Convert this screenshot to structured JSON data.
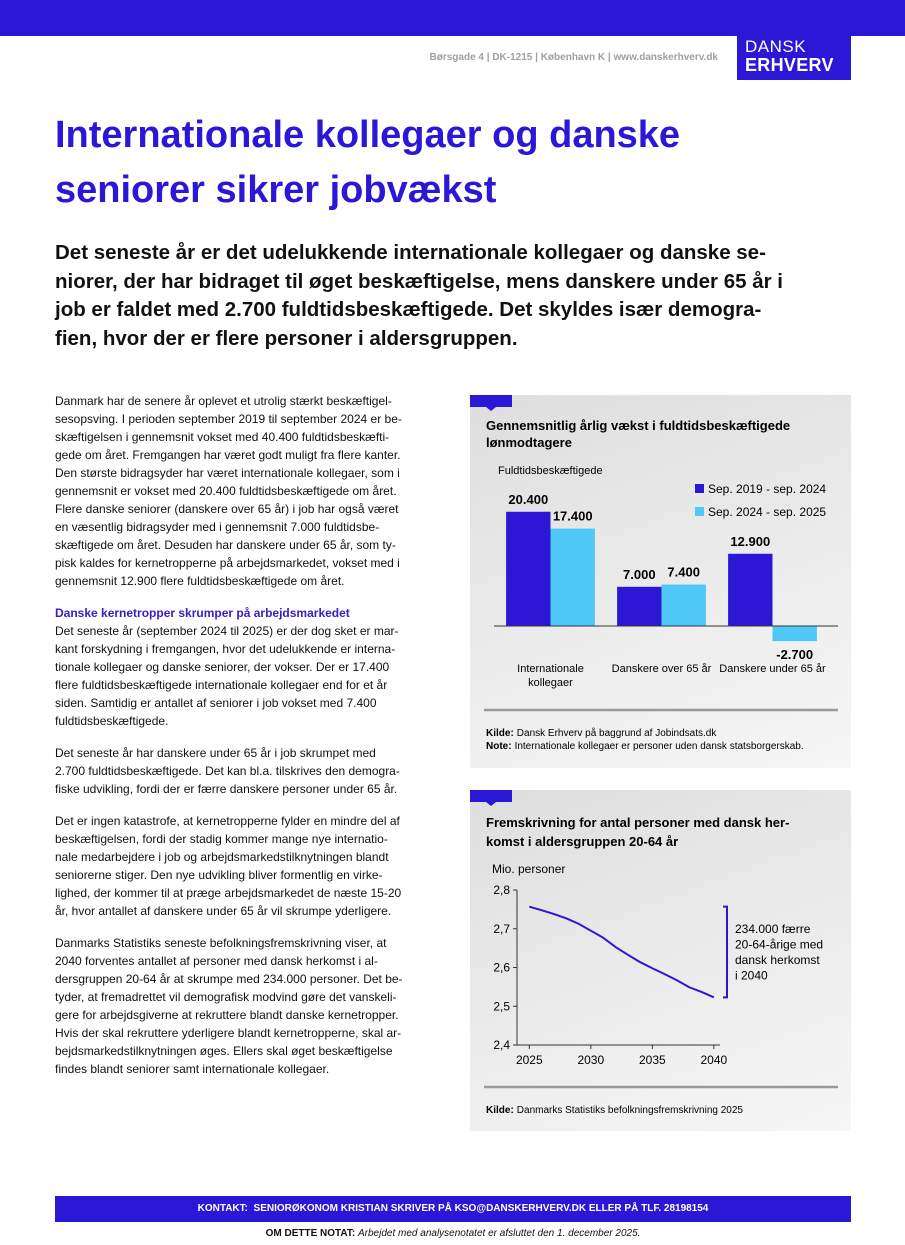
{
  "header": {
    "address": "Børsgade 4 | DK-1215 | København K | www.danskerhverv.dk",
    "logo": [
      "DANSK",
      "ERHVERV"
    ]
  },
  "title": [
    "Internationale kollegaer og danske",
    "seniorer sikrer jobvækst"
  ],
  "lead": [
    "Det seneste år er det udelukkende internationale kollegaer og danske se-",
    "niorer, der har bidraget til øget beskæftigelse, mens danskere under 65 år i",
    "job er faldet med 2.700 fuldtidsbeskæftigede. Det skyldes især demogra-",
    "fien, hvor der er flere personer i aldersgruppen."
  ],
  "body": [
    {
      "lines": [
        "Danmark har de senere år oplevet et utrolig stærkt beskæftigel-",
        "sesopsving. I perioden september 2019 til september 2024 er be-",
        "skæftigelsen i gennemsnit vokset med 40.400 fuldtidsbeskæfti-",
        "gede om året. Fremgangen har været godt muligt fra flere kanter.",
        "Den største bidragsyder har været internationale kollegaer, som i",
        "gennemsnit er vokset med 20.400 fuldtidsbeskæftigede om året.",
        "Flere danske seniorer (danskere over 65 år) i job har også været",
        "en væsentlig bidragsyder med i gennemsnit 7.000 fuldtidsbe-",
        "skæftigede om året. Desuden har danskere under 65 år, som ty-",
        "pisk kaldes for kernetropperne på arbejdsmarkedet, vokset med i",
        "gennemsnit 12.900 flere fuldtidsbeskæftigede om året."
      ]
    },
    {
      "heading": "Danske kernetropper skrumper på arbejdsmarkedet",
      "lines": [
        "Det seneste år (september 2024 til 2025) er der dog sket er mar-",
        "kant forskydning i fremgangen, hvor det udelukkende er interna-",
        "tionale kollegaer og danske seniorer, der vokser. Der er 17.400",
        "flere fuldtidsbeskæftigede internationale kollegaer end for et år",
        "siden. Samtidig er antallet af seniorer i job vokset med 7.400",
        "fuldtidsbeskæftigede."
      ]
    },
    {
      "lines": [
        "Det seneste år har danskere under 65 år i job skrumpet med",
        "2.700 fuldtidsbeskæftigede. Det kan bl.a. tilskrives den demogra-",
        "fiske udvikling, fordi der er færre danskere personer under 65 år."
      ]
    },
    {
      "lines": [
        "Det er ingen katastrofe, at kernetropperne fylder en mindre del af",
        "beskæftigelsen, fordi der stadig kommer mange nye internatio-",
        "nale medarbejdere i job og arbejdsmarkedstilknytningen blandt",
        "seniorerne stiger. Den nye udvikling bliver formentlig en virke-",
        "lighed, der kommer til at præge arbejdsmarkedet de næste 15-20",
        "år, hvor antallet af danskere under 65 år vil skrumpe yderligere."
      ]
    },
    {
      "lines": [
        "Danmarks Statistiks seneste befolkningsfremskrivning viser, at",
        "2040 forventes antallet af personer med dansk herkomst i al-",
        "dersgruppen 20-64 år at skrumpe med 234.000 personer. Det be-",
        "tyder, at fremadrettet vil demografisk modvind gøre det vanskeli-",
        "gere for arbejdsgiverne at rekruttere blandt danske kernetropper.",
        "Hvis der skal rekruttere yderligere blandt kernetropperne, skal ar-",
        "bejdsmarkedstilknytningen øges. Ellers skal øget beskæftigelse",
        "findes blandt seniorer samt internationale kollegaer."
      ]
    }
  ],
  "chart_data": [
    {
      "type": "bar",
      "title": [
        "Gennemsnitlig årlig vækst i fuldtidsbeskæftigede",
        "lønmodtagere"
      ],
      "ylabel": "Fuldtidsbeskæftigede",
      "categories": [
        "Internationale kollegaer",
        "Danskere over 65 år",
        "Danskere under 65 år"
      ],
      "series": [
        {
          "name": "Sep. 2019 - sep. 2024",
          "color": "#2b17d4",
          "values": [
            20400,
            7000,
            12900
          ],
          "value_labels": [
            "20.400",
            "7.000",
            "12.900"
          ]
        },
        {
          "name": "Sep. 2024 - sep. 2025",
          "color": "#4fc8f7",
          "values": [
            17400,
            7400,
            -2700
          ],
          "value_labels": [
            "17.400",
            "7.400",
            "-2.700"
          ]
        }
      ],
      "ylim": [
        -5000,
        25000
      ],
      "source": {
        "label": "Kilde:",
        "text": "Dansk Erhverv på baggrund af Jobindsats.dk"
      },
      "note": {
        "label": "Note:",
        "text": "Internationale kollegaer er personer uden dansk statsborgerskab."
      }
    },
    {
      "type": "line",
      "title": [
        "Fremskrivning for antal personer med dansk her-",
        "komst i aldersgruppen 20-64 år"
      ],
      "ylabel": "Mio. personer",
      "x": [
        2025,
        2026,
        2027,
        2028,
        2029,
        2030,
        2031,
        2032,
        2033,
        2034,
        2035,
        2036,
        2037,
        2038,
        2039,
        2040
      ],
      "values": [
        2.757,
        2.748,
        2.738,
        2.727,
        2.713,
        2.695,
        2.677,
        2.653,
        2.633,
        2.614,
        2.598,
        2.583,
        2.567,
        2.549,
        2.537,
        2.523
      ],
      "color": "#2b17d4",
      "xlim": [
        2024,
        2040.5
      ],
      "xticks": [
        2025,
        2030,
        2035,
        2040
      ],
      "ylim": [
        2.4,
        2.8
      ],
      "yticks": [
        {
          "value": 2.4,
          "label": "2,4"
        },
        {
          "value": 2.5,
          "label": "2,5"
        },
        {
          "value": 2.6,
          "label": "2,6"
        },
        {
          "value": 2.7,
          "label": "2,7"
        },
        {
          "value": 2.8,
          "label": "2,8"
        }
      ],
      "grid": false,
      "annotation": [
        "234.000 færre",
        "20-64-årige med",
        "dansk herkomst",
        "i 2040"
      ],
      "source": {
        "label": "Kilde:",
        "text": "Danmarks Statistiks befolkningsfremskrivning 2025"
      }
    }
  ],
  "footer": {
    "contact": "KONTAKT:  SENIORØKONOM KRISTIAN SKRIVER PÅ KSO@DANSKERHVERV.DK ELLER PÅ TLF. 28198154",
    "about_label": "OM DETTE NOTAT:",
    "about_text": "Arbejdet med analysenotatet er afsluttet den 1. december 2025."
  }
}
